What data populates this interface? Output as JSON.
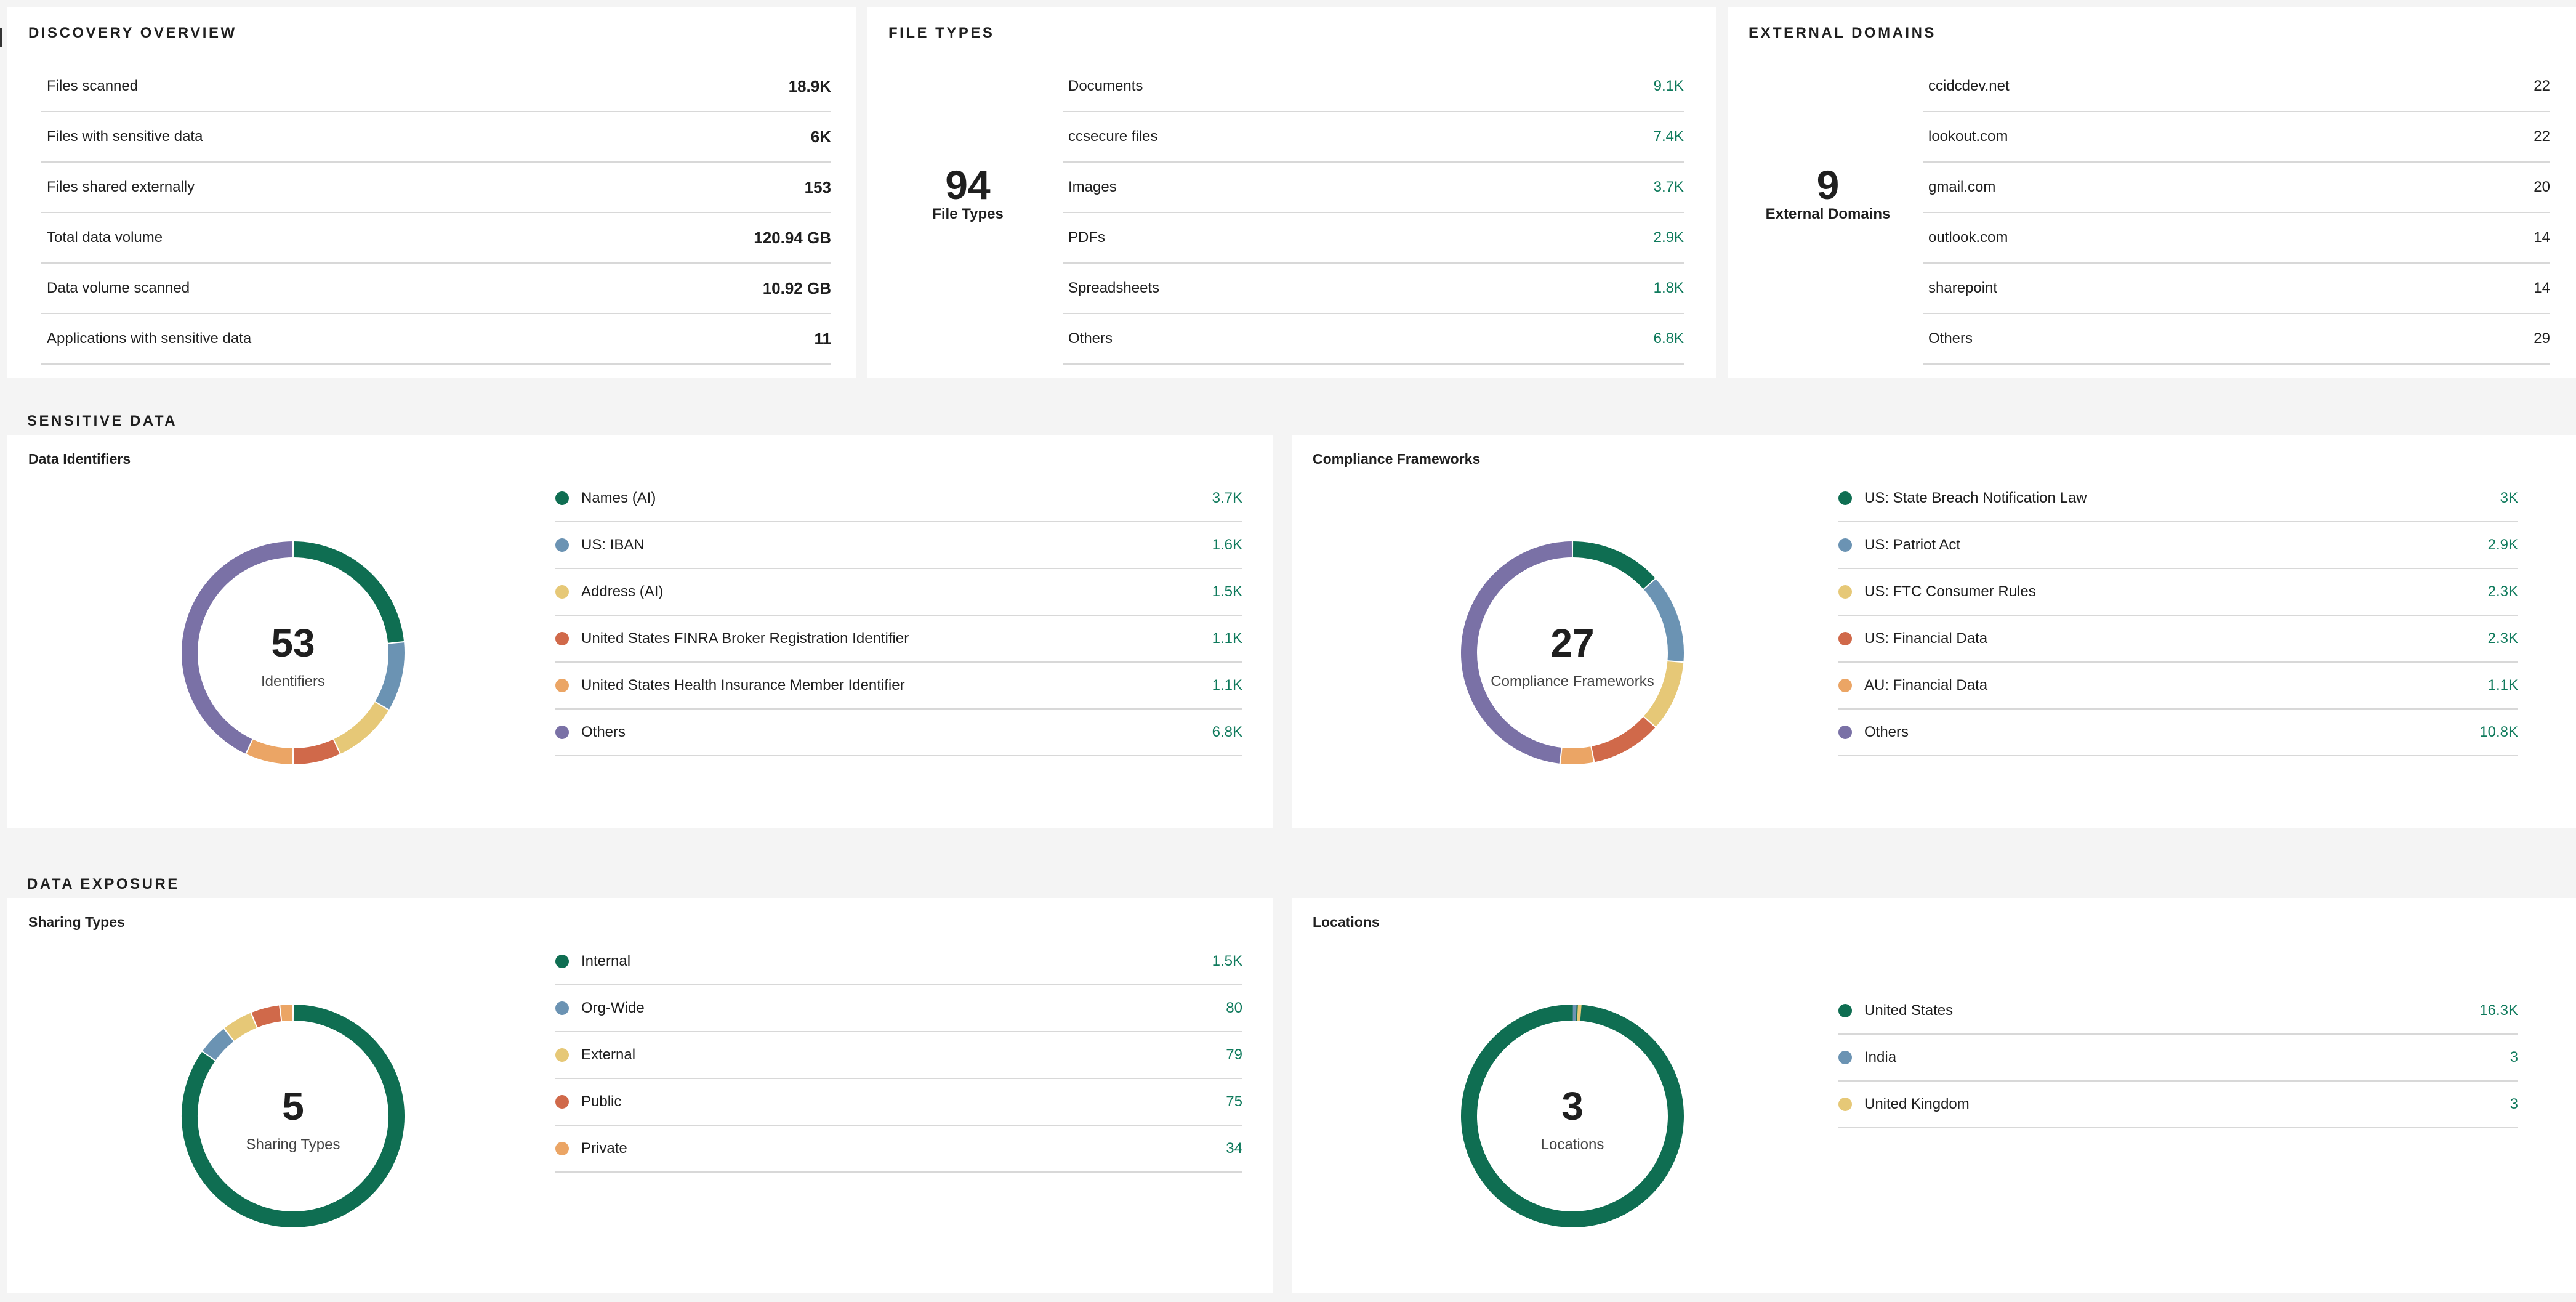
{
  "discovery": {
    "title": "DISCOVERY OVERVIEW",
    "rows": [
      {
        "label": "Files scanned",
        "value": "18.9K"
      },
      {
        "label": "Files with sensitive data",
        "value": "6K"
      },
      {
        "label": "Files shared externally",
        "value": "153"
      },
      {
        "label": "Total data volume",
        "value": "120.94 GB"
      },
      {
        "label": "Data volume scanned",
        "value": "10.92 GB"
      },
      {
        "label": "Applications with sensitive data",
        "value": "11"
      }
    ]
  },
  "file_types": {
    "title": "FILE TYPES",
    "count": "94",
    "count_label": "File Types",
    "rows": [
      {
        "label": "Documents",
        "value": "9.1K"
      },
      {
        "label": "ccsecure files",
        "value": "7.4K"
      },
      {
        "label": "Images",
        "value": "3.7K"
      },
      {
        "label": "PDFs",
        "value": "2.9K"
      },
      {
        "label": "Spreadsheets",
        "value": "1.8K"
      },
      {
        "label": "Others",
        "value": "6.8K"
      }
    ]
  },
  "external_domains": {
    "title": "EXTERNAL DOMAINS",
    "count": "9",
    "count_label": "External Domains",
    "rows": [
      {
        "label": "ccidcdev.net",
        "value": "22"
      },
      {
        "label": "lookout.com",
        "value": "22"
      },
      {
        "label": "gmail.com",
        "value": "20"
      },
      {
        "label": "outlook.com",
        "value": "14"
      },
      {
        "label": "sharepoint",
        "value": "14"
      },
      {
        "label": "Others",
        "value": "29"
      }
    ]
  },
  "sensitive_data": {
    "title": "SENSITIVE DATA",
    "identifiers": {
      "title": "Data Identifiers",
      "count": "53",
      "count_label": "Identifiers",
      "items": [
        {
          "label": "Names (AI)",
          "value": "3.7K",
          "amount": 3700,
          "color": "#0f6e52"
        },
        {
          "label": "US: IBAN",
          "value": "1.6K",
          "amount": 1600,
          "color": "#6b93b3"
        },
        {
          "label": "Address (AI)",
          "value": "1.5K",
          "amount": 1500,
          "color": "#e6c877"
        },
        {
          "label": "United States FINRA Broker Registration Identifier",
          "value": "1.1K",
          "amount": 1100,
          "color": "#d0694a"
        },
        {
          "label": "United States Health Insurance Member Identifier",
          "value": "1.1K",
          "amount": 1100,
          "color": "#eba565"
        },
        {
          "label": "Others",
          "value": "6.8K",
          "amount": 6800,
          "color": "#7a71a6"
        }
      ]
    },
    "frameworks": {
      "title": "Compliance Frameworks",
      "count": "27",
      "count_label": "Compliance Frameworks",
      "items": [
        {
          "label": "US: State Breach Notification Law",
          "value": "3K",
          "amount": 3000,
          "color": "#0f6e52"
        },
        {
          "label": "US: Patriot Act",
          "value": "2.9K",
          "amount": 2900,
          "color": "#6b93b3"
        },
        {
          "label": "US: FTC Consumer Rules",
          "value": "2.3K",
          "amount": 2300,
          "color": "#e6c877"
        },
        {
          "label": "US: Financial Data",
          "value": "2.3K",
          "amount": 2300,
          "color": "#d0694a"
        },
        {
          "label": "AU: Financial Data",
          "value": "1.1K",
          "amount": 1100,
          "color": "#eba565"
        },
        {
          "label": "Others",
          "value": "10.8K",
          "amount": 10800,
          "color": "#7a71a6"
        }
      ]
    }
  },
  "data_exposure": {
    "title": "DATA EXPOSURE",
    "sharing": {
      "title": "Sharing Types",
      "count": "5",
      "count_label": "Sharing Types",
      "items": [
        {
          "label": "Internal",
          "value": "1.5K",
          "amount": 1500,
          "color": "#0f6e52"
        },
        {
          "label": "Org-Wide",
          "value": "80",
          "amount": 80,
          "color": "#6b93b3"
        },
        {
          "label": "External",
          "value": "79",
          "amount": 79,
          "color": "#e6c877"
        },
        {
          "label": "Public",
          "value": "75",
          "amount": 75,
          "color": "#d0694a"
        },
        {
          "label": "Private",
          "value": "34",
          "amount": 34,
          "color": "#eba565"
        }
      ]
    },
    "locations": {
      "title": "Locations",
      "count": "3",
      "count_label": "Locations",
      "items": [
        {
          "label": "United States",
          "value": "16.3K",
          "amount": 16300,
          "color": "#0f6e52"
        },
        {
          "label": "India",
          "value": "3",
          "amount": 3,
          "color": "#6b93b3"
        },
        {
          "label": "United Kingdom",
          "value": "3",
          "amount": 3,
          "color": "#e6c877"
        }
      ]
    }
  }
}
